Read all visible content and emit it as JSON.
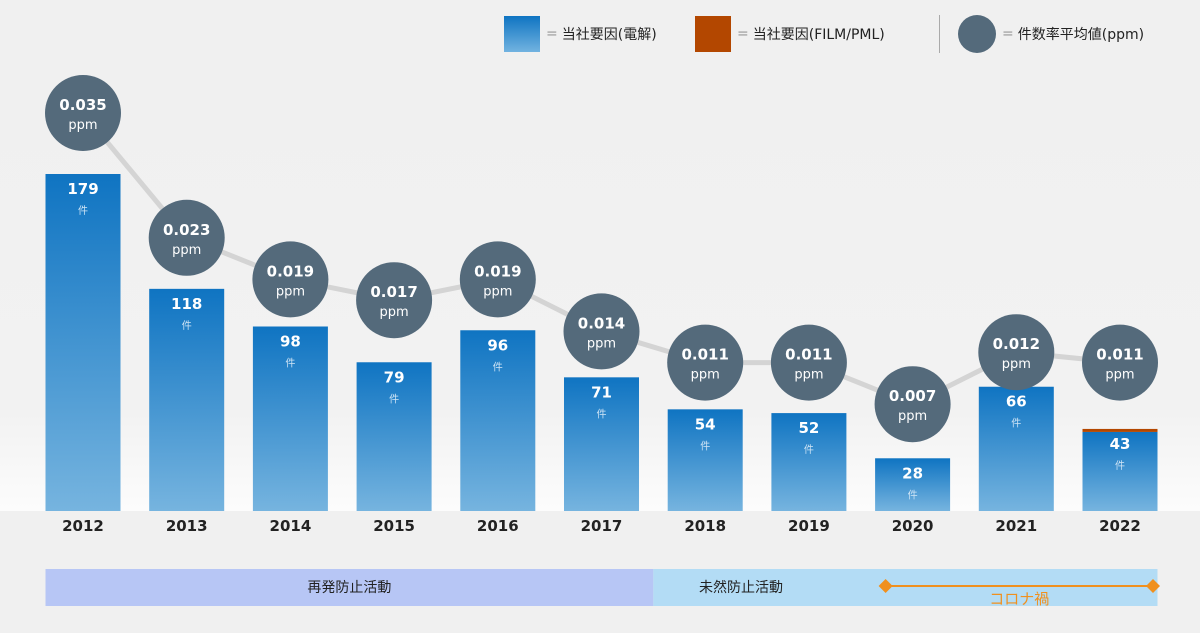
{
  "legend": {
    "items": [
      {
        "label": "当社要因(電解)",
        "color": "#0f74c2"
      },
      {
        "label": "当社要因(FILM/PML)",
        "color": "#b34700"
      },
      {
        "label": "件数率平均値(ppm)",
        "color": "#546a7b"
      }
    ],
    "equals": "="
  },
  "chart_data": {
    "type": "bar",
    "categories": [
      "2012",
      "2013",
      "2014",
      "2015",
      "2016",
      "2017",
      "2018",
      "2019",
      "2020",
      "2021",
      "2022"
    ],
    "series": [
      {
        "name": "当社要因(電解)",
        "values": [
          179,
          118,
          98,
          79,
          96,
          71,
          54,
          52,
          28,
          66,
          42
        ]
      },
      {
        "name": "当社要因(FILM/PML)",
        "values": [
          0,
          0,
          0,
          0,
          0,
          0,
          0,
          0,
          0,
          0,
          1
        ]
      }
    ],
    "totals": [
      179,
      118,
      98,
      79,
      96,
      71,
      54,
      52,
      28,
      66,
      43
    ],
    "count_unit": "件",
    "line": {
      "name": "件数率平均値(ppm)",
      "values": [
        0.035,
        0.023,
        0.019,
        0.017,
        0.019,
        0.014,
        0.011,
        0.011,
        0.007,
        0.012,
        0.011
      ],
      "labels": [
        "0.035",
        "0.023",
        "0.019",
        "0.017",
        "0.019",
        "0.014",
        "0.011",
        "0.011",
        "0.007",
        "0.012",
        "0.011"
      ],
      "unit": "ppm"
    },
    "ylim": [
      0,
      180
    ],
    "grid": false,
    "legend_position": "top-right"
  },
  "periods": [
    {
      "label": "再発防止活動",
      "from": "2012",
      "to": "2017",
      "color": "#b7c6f5"
    },
    {
      "label": "未然防止活動",
      "from": "2018",
      "to": "2022",
      "color": "#b3dcf5"
    }
  ],
  "corona": {
    "label": "コロナ禍",
    "from": "2020",
    "to": "2022",
    "color": "#f0901e"
  }
}
